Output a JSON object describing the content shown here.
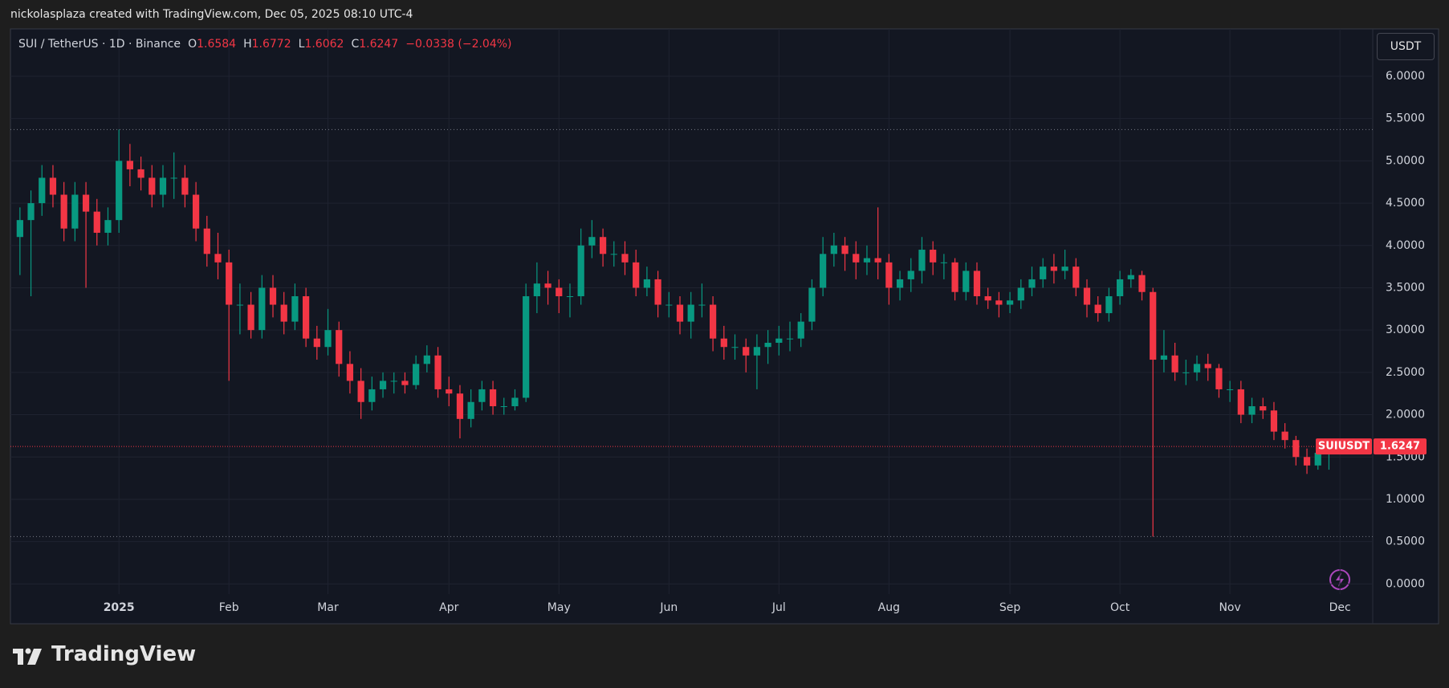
{
  "top_bar": "nickolasplaza created with TradingView.com, Dec 05, 2025 08:10 UTC-4",
  "header": {
    "symbol": "SUI / TetherUS · 1D · Binance",
    "ohlc": [
      {
        "key": "O",
        "value": "1.6584"
      },
      {
        "key": "H",
        "value": "1.6772"
      },
      {
        "key": "L",
        "value": "1.6062"
      },
      {
        "key": "C",
        "value": "1.6247"
      }
    ],
    "change": "−0.0338 (−2.04%)"
  },
  "currency": "USDT",
  "footer": "TradingView",
  "chart_data": {
    "type": "candlestick",
    "categories": [
      null,
      null,
      null,
      null,
      null,
      null,
      null,
      null,
      null,
      "2025",
      null,
      null,
      null,
      null,
      null,
      null,
      null,
      null,
      null,
      "Feb",
      null,
      null,
      null,
      null,
      null,
      null,
      null,
      null,
      "Mar",
      null,
      null,
      null,
      null,
      null,
      null,
      null,
      null,
      null,
      null,
      "Apr",
      null,
      null,
      null,
      null,
      null,
      null,
      null,
      null,
      null,
      "May",
      null,
      null,
      null,
      null,
      null,
      null,
      null,
      null,
      null,
      "Jun",
      null,
      null,
      null,
      null,
      null,
      null,
      null,
      null,
      null,
      "Jul",
      null,
      null,
      null,
      null,
      null,
      null,
      null,
      null,
      null,
      "Aug",
      null,
      null,
      null,
      null,
      null,
      null,
      null,
      null,
      null,
      null,
      "Sep",
      null,
      null,
      null,
      null,
      null,
      null,
      null,
      null,
      null,
      "Oct",
      null,
      null,
      null,
      null,
      null,
      null,
      null,
      null,
      null,
      "Nov",
      null,
      null,
      null,
      null,
      null,
      null,
      null,
      null,
      null,
      "Dec"
    ],
    "open": [
      4.1,
      4.3,
      4.5,
      4.8,
      4.6,
      4.2,
      4.6,
      4.4,
      4.15,
      4.3,
      5.0,
      4.9,
      4.8,
      4.6,
      4.8,
      4.8,
      4.6,
      4.2,
      3.9,
      3.8,
      3.3,
      3.3,
      3.0,
      3.5,
      3.3,
      3.1,
      3.4,
      2.9,
      2.8,
      3.0,
      2.6,
      2.4,
      2.15,
      2.3,
      2.4,
      2.4,
      2.35,
      2.6,
      2.7,
      2.3,
      2.25,
      1.95,
      2.15,
      2.3,
      2.1,
      2.1,
      2.2,
      3.4,
      3.55,
      3.5,
      3.4,
      3.4,
      4.0,
      4.1,
      3.9,
      3.9,
      3.8,
      3.5,
      3.6,
      3.3,
      3.3,
      3.1,
      3.3,
      3.3,
      2.9,
      2.8,
      2.8,
      2.7,
      2.8,
      2.85,
      2.9,
      2.9,
      3.1,
      3.5,
      3.9,
      4.0,
      3.9,
      3.8,
      3.85,
      3.8,
      3.5,
      3.6,
      3.7,
      3.95,
      3.8,
      3.8,
      3.45,
      3.7,
      3.4,
      3.35,
      3.3,
      3.35,
      3.5,
      3.6,
      3.75,
      3.7,
      3.75,
      3.5,
      3.3,
      3.2,
      3.4,
      3.6,
      3.65,
      3.45,
      2.65,
      2.7,
      2.5,
      2.5,
      2.6,
      2.55,
      2.3,
      2.3,
      2.0,
      2.1,
      2.05,
      1.8,
      1.7,
      1.5,
      1.4,
      1.55,
      1.6584
    ],
    "high": [
      4.45,
      4.65,
      4.95,
      4.95,
      4.75,
      4.75,
      4.75,
      4.55,
      4.45,
      5.37,
      5.2,
      5.05,
      4.95,
      4.95,
      5.1,
      4.95,
      4.75,
      4.35,
      4.15,
      3.95,
      3.55,
      3.45,
      3.65,
      3.65,
      3.45,
      3.55,
      3.5,
      3.05,
      3.25,
      3.1,
      2.75,
      2.55,
      2.45,
      2.5,
      2.5,
      2.5,
      2.7,
      2.82,
      2.8,
      2.45,
      2.35,
      2.3,
      2.4,
      2.4,
      2.2,
      2.3,
      3.55,
      3.8,
      3.7,
      3.6,
      3.55,
      4.2,
      4.3,
      4.2,
      4.05,
      4.05,
      3.95,
      3.75,
      3.7,
      3.45,
      3.4,
      3.45,
      3.55,
      3.4,
      3.05,
      2.95,
      2.9,
      2.95,
      3.0,
      3.05,
      3.1,
      3.2,
      3.6,
      4.1,
      4.15,
      4.1,
      4.05,
      4.0,
      4.45,
      3.9,
      3.7,
      3.85,
      4.1,
      4.05,
      3.9,
      3.85,
      3.8,
      3.8,
      3.5,
      3.45,
      3.45,
      3.6,
      3.75,
      3.85,
      3.9,
      3.95,
      3.85,
      3.6,
      3.4,
      3.5,
      3.7,
      3.72,
      3.7,
      3.5,
      3.0,
      2.85,
      2.65,
      2.7,
      2.72,
      2.6,
      2.4,
      2.4,
      2.2,
      2.2,
      2.15,
      1.9,
      1.75,
      1.6,
      1.6,
      1.7,
      1.6772
    ],
    "low": [
      3.65,
      3.4,
      4.35,
      4.45,
      4.05,
      4.05,
      3.5,
      4.0,
      4.0,
      4.15,
      4.7,
      4.65,
      4.45,
      4.45,
      4.55,
      4.45,
      4.05,
      3.75,
      3.6,
      2.4,
      2.95,
      2.9,
      2.9,
      3.15,
      2.95,
      3.0,
      2.8,
      2.65,
      2.7,
      2.45,
      2.25,
      1.95,
      2.05,
      2.2,
      2.25,
      2.25,
      2.3,
      2.5,
      2.2,
      2.1,
      1.72,
      1.85,
      2.05,
      2.0,
      2.0,
      2.05,
      2.15,
      3.2,
      3.3,
      3.2,
      3.15,
      3.3,
      3.85,
      3.75,
      3.75,
      3.65,
      3.4,
      3.4,
      3.15,
      3.15,
      2.95,
      2.9,
      3.15,
      2.75,
      2.65,
      2.65,
      2.5,
      2.3,
      2.6,
      2.7,
      2.75,
      2.8,
      3.0,
      3.4,
      3.75,
      3.7,
      3.6,
      3.65,
      3.6,
      3.3,
      3.35,
      3.45,
      3.55,
      3.65,
      3.6,
      3.35,
      3.35,
      3.3,
      3.25,
      3.15,
      3.2,
      3.25,
      3.4,
      3.5,
      3.55,
      3.6,
      3.4,
      3.15,
      3.1,
      3.1,
      3.3,
      3.5,
      3.35,
      0.56,
      2.5,
      2.4,
      2.35,
      2.4,
      2.4,
      2.2,
      2.15,
      1.9,
      1.9,
      1.95,
      1.7,
      1.6,
      1.4,
      1.3,
      1.35,
      1.35,
      1.6062
    ],
    "close": [
      4.3,
      4.5,
      4.8,
      4.6,
      4.2,
      4.6,
      4.4,
      4.15,
      4.3,
      5.0,
      4.9,
      4.8,
      4.6,
      4.8,
      4.8,
      4.6,
      4.2,
      3.9,
      3.8,
      3.3,
      3.3,
      3.0,
      3.5,
      3.3,
      3.1,
      3.4,
      2.9,
      2.8,
      3.0,
      2.6,
      2.4,
      2.15,
      2.3,
      2.4,
      2.4,
      2.35,
      2.6,
      2.7,
      2.3,
      2.25,
      1.95,
      2.15,
      2.3,
      2.1,
      2.1,
      2.2,
      3.4,
      3.55,
      3.5,
      3.4,
      3.4,
      4.0,
      4.1,
      3.9,
      3.9,
      3.8,
      3.5,
      3.6,
      3.3,
      3.3,
      3.1,
      3.3,
      3.3,
      2.9,
      2.8,
      2.8,
      2.7,
      2.8,
      2.85,
      2.9,
      2.9,
      3.1,
      3.5,
      3.9,
      4.0,
      3.9,
      3.8,
      3.85,
      3.8,
      3.5,
      3.6,
      3.7,
      3.95,
      3.8,
      3.8,
      3.45,
      3.7,
      3.4,
      3.35,
      3.3,
      3.35,
      3.5,
      3.6,
      3.75,
      3.7,
      3.75,
      3.5,
      3.3,
      3.2,
      3.4,
      3.6,
      3.65,
      3.45,
      2.65,
      2.7,
      2.5,
      2.5,
      2.6,
      2.55,
      2.3,
      2.3,
      2.0,
      2.1,
      2.05,
      1.8,
      1.7,
      1.5,
      1.4,
      1.55,
      1.6584,
      1.6247
    ],
    "up_color": "#089981",
    "down_color": "#f23645",
    "ylim": [
      -0.12,
      6.55
    ],
    "yticks": [
      {
        "value": 0,
        "label": "0.0000"
      },
      {
        "value": 0.5,
        "label": "0.5000"
      },
      {
        "value": 1,
        "label": "1.0000"
      },
      {
        "value": 1.5,
        "label": "1.5000"
      },
      {
        "value": 2,
        "label": "2.0000"
      },
      {
        "value": 2.5,
        "label": "2.5000"
      },
      {
        "value": 3,
        "label": "3.0000"
      },
      {
        "value": 3.5,
        "label": "3.5000"
      },
      {
        "value": 4,
        "label": "4.0000"
      },
      {
        "value": 4.5,
        "label": "4.5000"
      },
      {
        "value": 5,
        "label": "5.0000"
      },
      {
        "value": 5.5,
        "label": "5.5000"
      },
      {
        "value": 6,
        "label": "6.0000"
      }
    ],
    "grid": true,
    "level_lines": [
      5.37,
      0.56
    ],
    "price_tag": {
      "name": "SUIUSDT",
      "value": 1.6247
    }
  }
}
